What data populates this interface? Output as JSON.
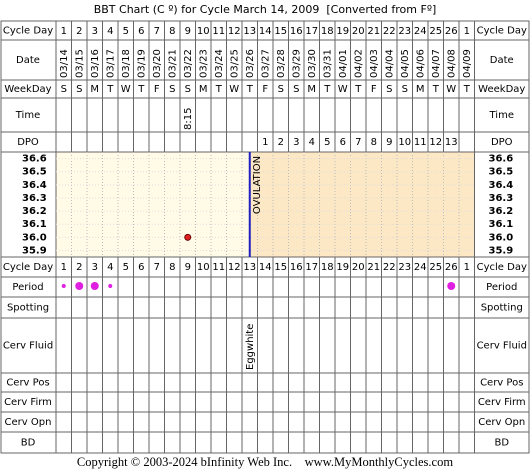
{
  "chart_data": {
    "type": "bbt",
    "title": "BBT Chart (C º) for Cycle March 14, 2009  [Converted from Fº]",
    "row_labels": {
      "cycle_day": "Cycle Day",
      "date": "Date",
      "weekday": "WeekDay",
      "time": "Time",
      "dpo": "DPO",
      "period": "Period",
      "spotting": "Spotting",
      "cerv_fluid": "Cerv Fluid",
      "cerv_pos": "Cerv Pos",
      "cerv_firm": "Cerv Firm",
      "cerv_opn": "Cerv Opn",
      "bd": "BD"
    },
    "categories": [
      1,
      2,
      3,
      4,
      5,
      6,
      7,
      8,
      9,
      10,
      11,
      12,
      13,
      14,
      15,
      16,
      17,
      18,
      19,
      20,
      21,
      22,
      23,
      24,
      25,
      26,
      1
    ],
    "dates": [
      "03/14",
      "03/15",
      "03/16",
      "03/17",
      "03/18",
      "03/19",
      "03/20",
      "03/21",
      "03/22",
      "03/23",
      "03/24",
      "03/25",
      "03/26",
      "03/27",
      "03/28",
      "03/29",
      "03/30",
      "03/31",
      "04/01",
      "04/02",
      "04/03",
      "04/04",
      "04/05",
      "04/06",
      "04/07",
      "04/08",
      "04/09"
    ],
    "weekdays": [
      "S",
      "S",
      "M",
      "T",
      "W",
      "T",
      "F",
      "S",
      "S",
      "M",
      "T",
      "W",
      "T",
      "F",
      "S",
      "S",
      "M",
      "T",
      "W",
      "T",
      "F",
      "S",
      "S",
      "M",
      "T",
      "W",
      "T"
    ],
    "times": [
      null,
      null,
      null,
      null,
      null,
      null,
      null,
      null,
      "8:15",
      null,
      null,
      null,
      null,
      null,
      null,
      null,
      null,
      null,
      null,
      null,
      null,
      null,
      null,
      null,
      null,
      null,
      null
    ],
    "dpo": [
      null,
      null,
      null,
      null,
      null,
      null,
      null,
      null,
      null,
      null,
      null,
      null,
      null,
      1,
      2,
      3,
      4,
      5,
      6,
      7,
      8,
      9,
      10,
      11,
      12,
      13,
      null
    ],
    "values": [
      null,
      null,
      null,
      null,
      null,
      null,
      null,
      null,
      36.0,
      null,
      null,
      null,
      null,
      null,
      null,
      null,
      null,
      null,
      null,
      null,
      null,
      null,
      null,
      null,
      null,
      null,
      null
    ],
    "color": "#e02020",
    "ylim": [
      35.85,
      36.65
    ],
    "yticks": [
      36.6,
      36.5,
      36.4,
      36.3,
      36.2,
      36.1,
      {
        "value": 36,
        "label": "36.0"
      },
      35.9
    ],
    "ovulation": {
      "day": 13,
      "label": "OVULATION",
      "color": "#2020c0"
    },
    "period": [
      1,
      2,
      2,
      1,
      null,
      null,
      null,
      null,
      null,
      null,
      null,
      null,
      null,
      null,
      null,
      null,
      null,
      null,
      null,
      null,
      null,
      null,
      null,
      null,
      null,
      2,
      null
    ],
    "period_color": "#e020e0",
    "cerv_fluid": [
      null,
      null,
      null,
      null,
      null,
      null,
      null,
      null,
      null,
      null,
      null,
      null,
      "Eggwhite",
      null,
      null,
      null,
      null,
      null,
      null,
      null,
      null,
      null,
      null,
      null,
      null,
      null,
      null
    ],
    "copyright": "Copyright © 2003-2024 bInfinity Web Inc.    www.MyMonthlyCycles.com"
  }
}
